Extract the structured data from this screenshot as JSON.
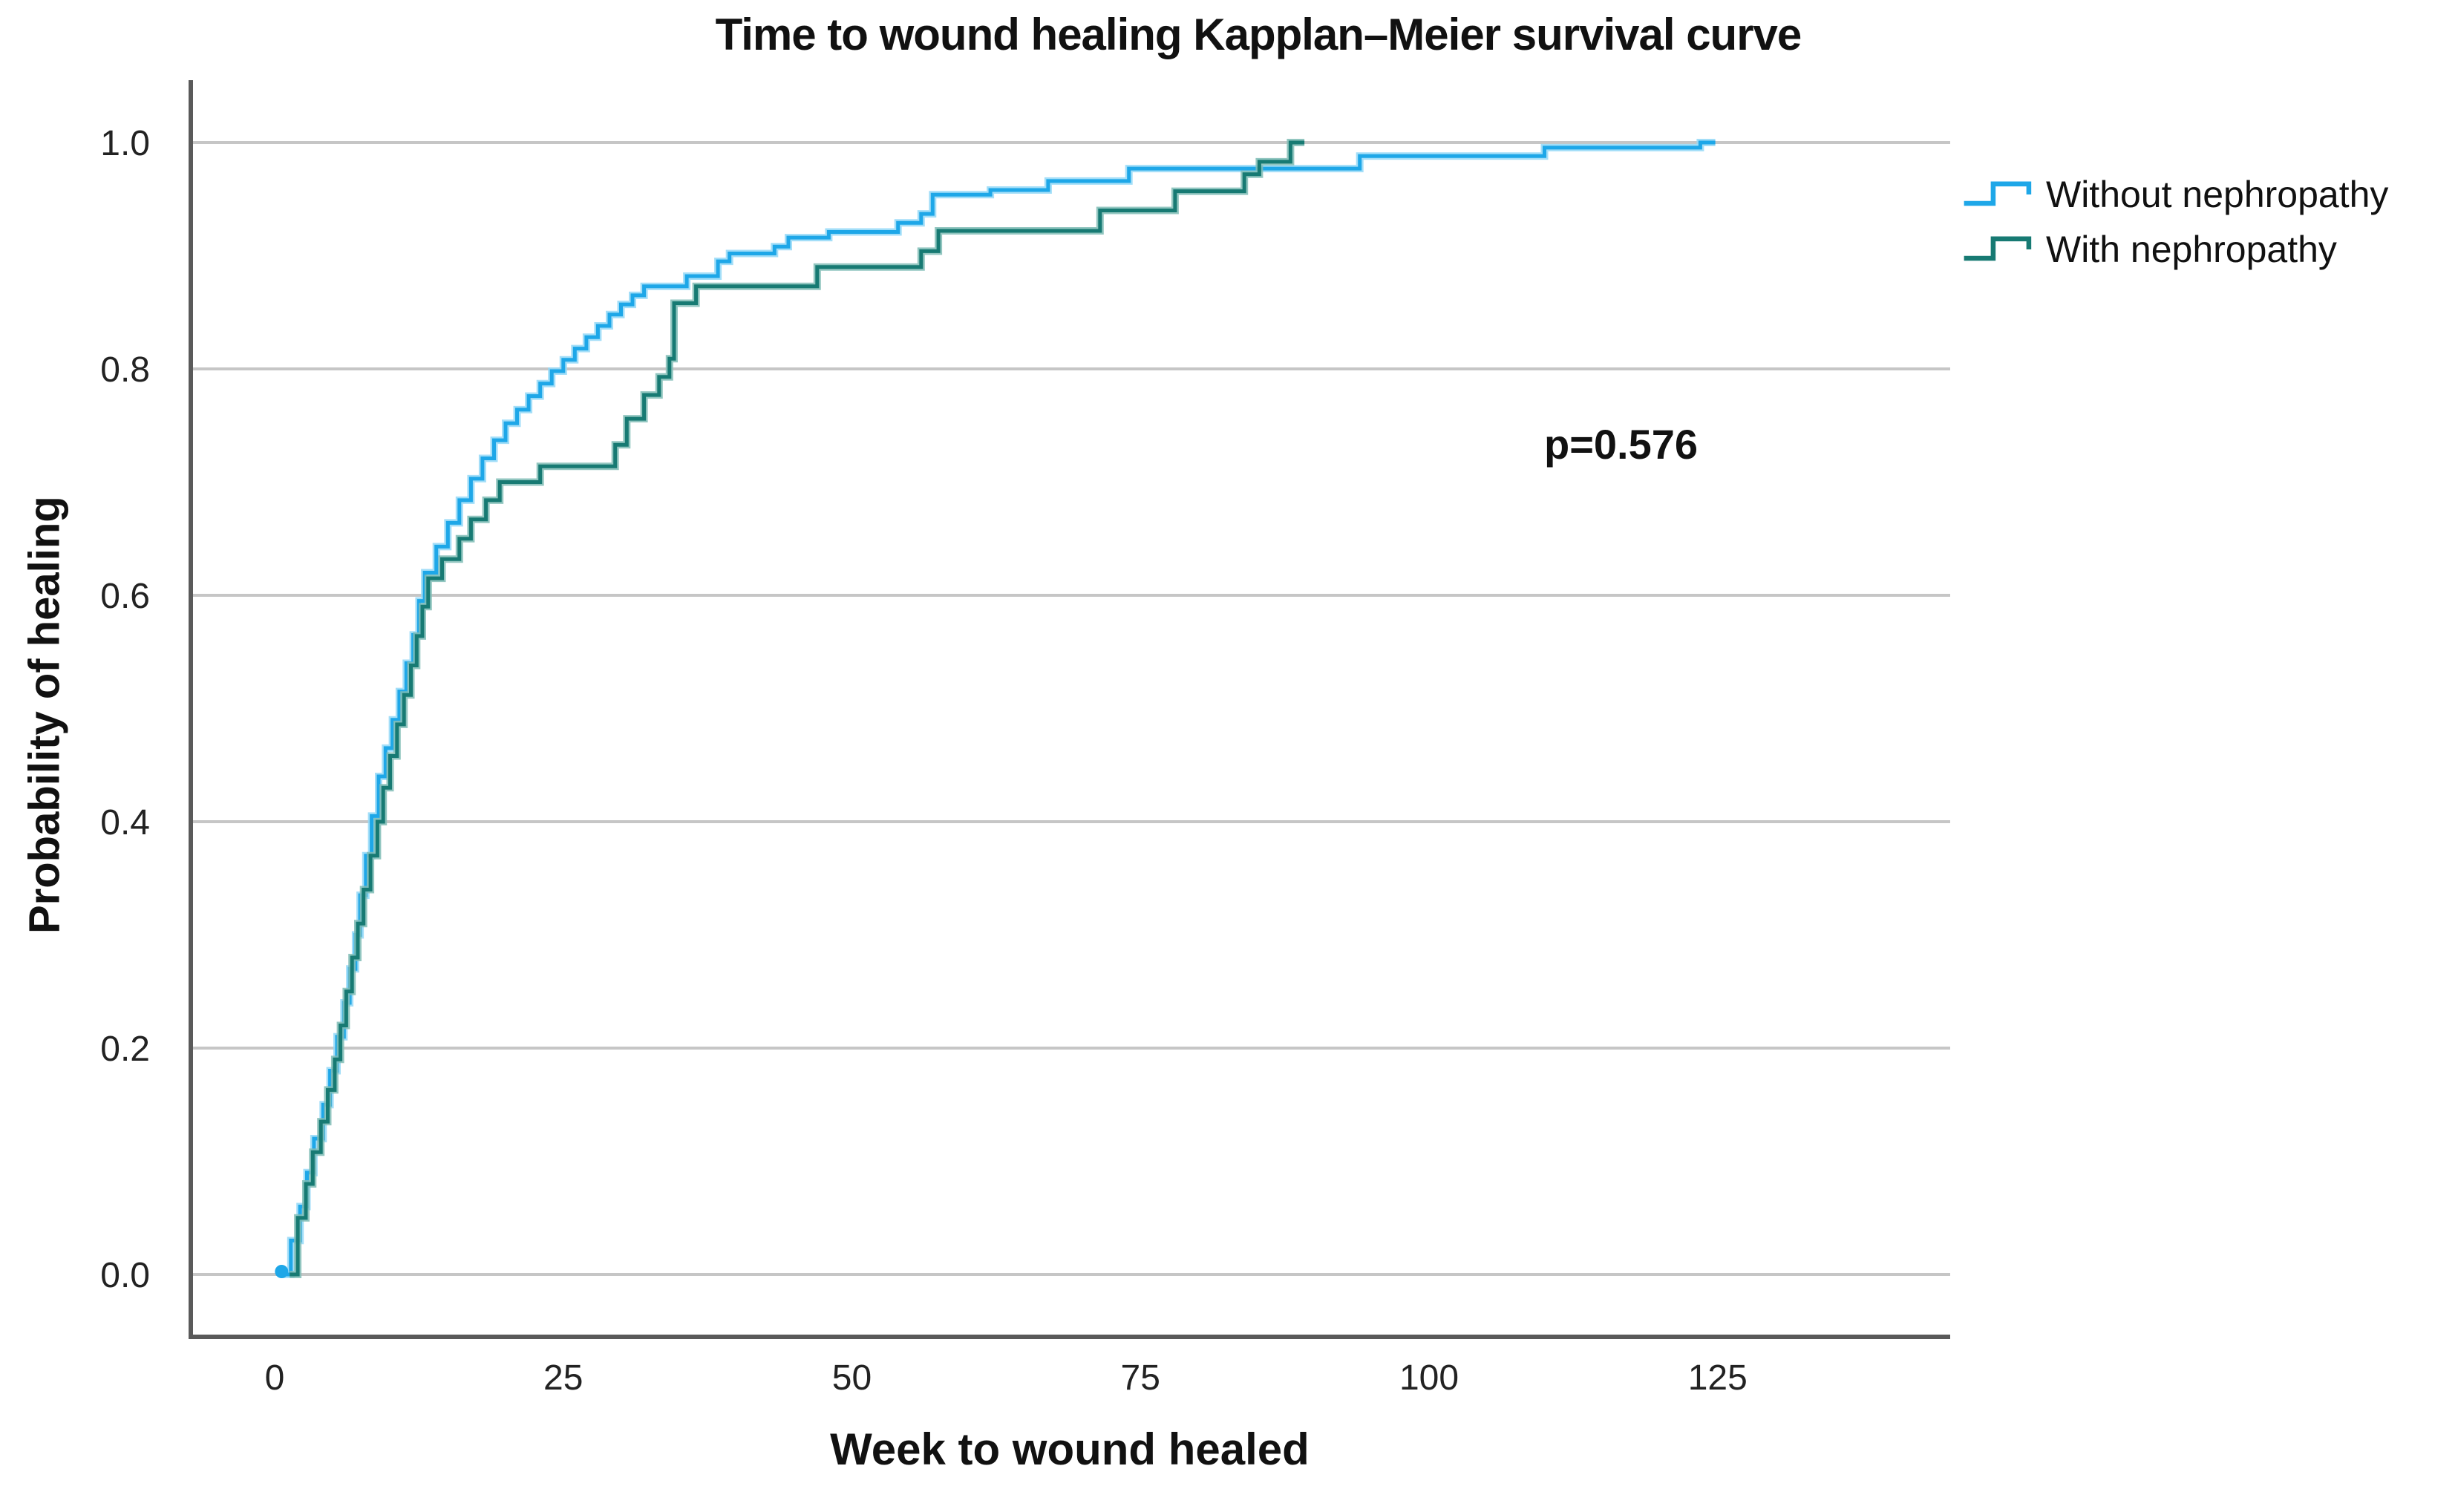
{
  "chart_data": {
    "type": "line",
    "variant": "kaplan_meier_step",
    "title": "Time to wound healing Kapplan–Meier survival curve",
    "xlabel": "Week to wound healed",
    "ylabel": "Probability of healing",
    "annotation": {
      "text": "p=0.576"
    },
    "grid": "horizontal",
    "legend_position": "top-right",
    "xlim": [
      -7.4,
      145.8
    ],
    "ylim": [
      0,
      1.0
    ],
    "x_ticks": {
      "values": [
        0,
        25,
        50,
        75,
        100,
        125
      ],
      "labels": [
        "0",
        "25",
        "50",
        "75",
        "100",
        "125"
      ]
    },
    "y_ticks": {
      "values": [
        0.0,
        0.2,
        0.4,
        0.6,
        0.8,
        1.0
      ],
      "labels": [
        "0.0",
        "0.2",
        "0.4",
        "0.6",
        "0.8",
        "1.0"
      ]
    },
    "colors": {
      "axis": "#5a5a5a",
      "gridline": "#c6c6c6",
      "tick_text": "#222222",
      "background": "#ffffff"
    },
    "series": [
      {
        "name": "Without nephropathy",
        "color": "#1ea7e8",
        "halo": "#93d8f7",
        "end_week": 124.8,
        "points": [
          [
            0.6,
            0
          ],
          [
            1.4,
            0.03
          ],
          [
            2.2,
            0.06
          ],
          [
            2.8,
            0.09
          ],
          [
            3.4,
            0.12
          ],
          [
            4.2,
            0.15
          ],
          [
            4.8,
            0.18
          ],
          [
            5.4,
            0.21
          ],
          [
            6,
            0.24
          ],
          [
            6.5,
            0.27
          ],
          [
            7,
            0.3
          ],
          [
            7.4,
            0.335
          ],
          [
            7.9,
            0.37
          ],
          [
            8.4,
            0.405
          ],
          [
            9,
            0.44
          ],
          [
            9.6,
            0.465
          ],
          [
            10.2,
            0.49
          ],
          [
            10.8,
            0.515
          ],
          [
            11.4,
            0.54
          ],
          [
            12,
            0.565
          ],
          [
            12.5,
            0.595
          ],
          [
            13,
            0.62
          ],
          [
            14,
            0.643
          ],
          [
            15,
            0.664
          ],
          [
            16,
            0.684
          ],
          [
            17,
            0.703
          ],
          [
            18,
            0.721
          ],
          [
            19,
            0.737
          ],
          [
            20,
            0.752
          ],
          [
            21,
            0.764
          ],
          [
            22,
            0.776
          ],
          [
            23,
            0.787
          ],
          [
            24,
            0.798
          ],
          [
            25,
            0.808
          ],
          [
            26,
            0.818
          ],
          [
            27,
            0.828
          ],
          [
            28,
            0.838
          ],
          [
            29,
            0.848
          ],
          [
            30,
            0.857
          ],
          [
            31,
            0.865
          ],
          [
            32,
            0.873
          ],
          [
            35.7,
            0.882
          ],
          [
            38.4,
            0.895
          ],
          [
            39.4,
            0.902
          ],
          [
            43.3,
            0.908
          ],
          [
            44.5,
            0.916
          ],
          [
            48,
            0.921
          ],
          [
            54,
            0.929
          ],
          [
            56,
            0.937
          ],
          [
            57,
            0.954
          ],
          [
            62,
            0.958
          ],
          [
            67,
            0.966
          ],
          [
            74,
            0.977
          ],
          [
            94,
            0.988
          ],
          [
            110,
            0.9955
          ],
          [
            123.5,
            1.0
          ]
        ]
      },
      {
        "name": "With nephropathy",
        "color": "#177a73",
        "halo": "#7fbcb5",
        "end_week": 89.2,
        "points": [
          [
            1.3,
            0
          ],
          [
            2,
            0.05
          ],
          [
            2.7,
            0.08
          ],
          [
            3.3,
            0.108
          ],
          [
            4,
            0.135
          ],
          [
            4.6,
            0.163
          ],
          [
            5.2,
            0.19
          ],
          [
            5.7,
            0.22
          ],
          [
            6.2,
            0.25
          ],
          [
            6.7,
            0.28
          ],
          [
            7.2,
            0.31
          ],
          [
            7.7,
            0.34
          ],
          [
            8.3,
            0.37
          ],
          [
            8.9,
            0.4
          ],
          [
            9.4,
            0.43
          ],
          [
            10,
            0.458
          ],
          [
            10.6,
            0.486
          ],
          [
            11.2,
            0.512
          ],
          [
            11.8,
            0.538
          ],
          [
            12.3,
            0.564
          ],
          [
            12.8,
            0.59
          ],
          [
            13.3,
            0.615
          ],
          [
            14.5,
            0.632
          ],
          [
            16,
            0.65
          ],
          [
            17,
            0.667
          ],
          [
            18.3,
            0.684
          ],
          [
            19.5,
            0.7
          ],
          [
            23,
            0.714
          ],
          [
            29.5,
            0.733
          ],
          [
            30.5,
            0.756
          ],
          [
            32,
            0.777
          ],
          [
            33.3,
            0.793
          ],
          [
            34.2,
            0.809
          ],
          [
            34.6,
            0.858
          ],
          [
            36.5,
            0.873
          ],
          [
            47,
            0.89
          ],
          [
            56,
            0.904
          ],
          [
            57.5,
            0.922
          ],
          [
            71.5,
            0.94
          ],
          [
            78,
            0.957
          ],
          [
            84,
            0.972
          ],
          [
            85.3,
            0.983
          ],
          [
            88,
            1.0
          ]
        ]
      }
    ]
  }
}
